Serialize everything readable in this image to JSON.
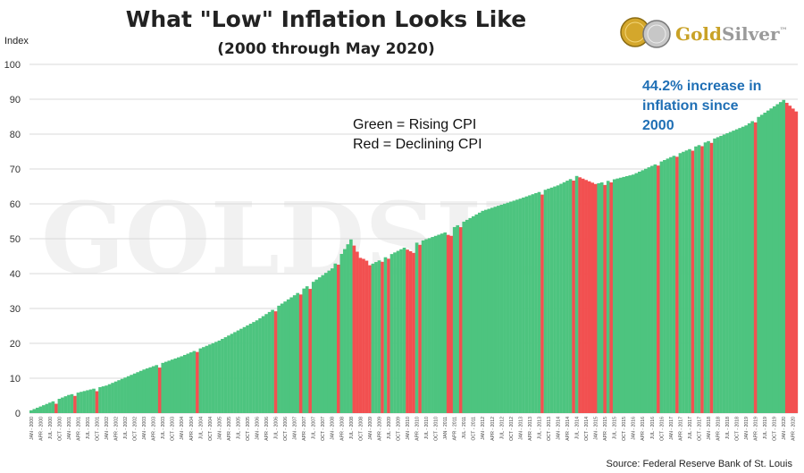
{
  "header": {
    "title": "What \"Low\" Inflation Looks Like",
    "subtitle": "(2000 through May 2020)"
  },
  "logo": {
    "name_part1": "Gold",
    "name_part2": "Silver",
    "trademark": "™",
    "colors": {
      "gold": "#c9a227",
      "silver": "#9a9a9a"
    }
  },
  "legend_note": {
    "line1": "Green = Rising CPI",
    "line2": "Red = Declining CPI"
  },
  "annotation": {
    "line1": "44.2% increase in",
    "line2": "inflation since",
    "line3": "2000"
  },
  "source": "Source: Federal Reserve Bank of St. Louis",
  "watermark": "GOLDSILVER",
  "colors": {
    "rising": "#4dc47f",
    "declining": "#f25050",
    "grid": "#d9d9d9",
    "annotation": "#1f6fb5"
  },
  "chart_data": {
    "type": "bar",
    "title": "What \"Low\" Inflation Looks Like",
    "subtitle": "(2000 through May 2020)",
    "ylabel": "Index",
    "ylim": [
      0,
      100
    ],
    "yticks": [
      0,
      10,
      20,
      30,
      40,
      50,
      60,
      70,
      80,
      90,
      100
    ],
    "grid": true,
    "start": "JAN - 2000",
    "frequency": "monthly",
    "x_tick_labels": [
      "JAN - 2000",
      "APR - 2000",
      "JUL - 2000",
      "OCT - 2000",
      "JAN - 2001",
      "APR - 2001",
      "JUL - 2001",
      "OCT - 2001",
      "JAN - 2002",
      "APR - 2002",
      "JUL - 2002",
      "OCT - 2002",
      "JAN - 2003",
      "APR - 2003",
      "JUL - 2003",
      "OCT - 2003",
      "JAN - 2004",
      "APR - 2004",
      "JUL - 2004",
      "OCT - 2004",
      "JAN - 2005",
      "APR - 2005",
      "JUL - 2005",
      "OCT - 2005",
      "JAN - 2006",
      "APR - 2006",
      "JUL - 2006",
      "OCT - 2006",
      "JAN - 2007",
      "APR - 2007",
      "JUL - 2007",
      "OCT - 2007",
      "JAN - 2008",
      "APR - 2008",
      "JUL - 2008",
      "OCT - 2008",
      "JAN - 2009",
      "APR - 2009",
      "JUL - 2009",
      "OCT - 2009",
      "JAN - 2010",
      "APR - 2010",
      "JUL - 2010",
      "OCT - 2010",
      "JAN - 2011",
      "APR - 2011",
      "JUL - 2011",
      "OCT - 2011",
      "JAN - 2012",
      "APR - 2012",
      "JUL - 2012",
      "OCT - 2012",
      "JAN - 2013",
      "APR - 2013",
      "JUL - 2013",
      "OCT - 2013",
      "JAN - 2014",
      "APR - 2014",
      "JUL - 2014",
      "OCT - 2014",
      "JAN - 2015",
      "APR - 2015",
      "JUL - 2015",
      "OCT - 2015",
      "JAN - 2016",
      "APR - 2016",
      "JUL - 2016",
      "OCT - 2016",
      "JAN - 2017",
      "APR - 2017",
      "JUL - 2017",
      "OCT - 2017",
      "JAN - 2018",
      "APR - 2018",
      "JUL - 2018",
      "OCT - 2018",
      "JAN - 2019",
      "APR - 2019",
      "JUL - 2019",
      "OCT - 2019",
      "JAN - 2020",
      "APR - 2020"
    ],
    "yearly_anchors": [
      {
        "year": 2000,
        "month": 1,
        "value": 0.8
      },
      {
        "year": 2001,
        "month": 1,
        "value": 5.2
      },
      {
        "year": 2002,
        "month": 1,
        "value": 7.9
      },
      {
        "year": 2003,
        "month": 1,
        "value": 12.5
      },
      {
        "year": 2004,
        "month": 1,
        "value": 16.3
      },
      {
        "year": 2005,
        "month": 1,
        "value": 20.8
      },
      {
        "year": 2006,
        "month": 1,
        "value": 26.6
      },
      {
        "year": 2007,
        "month": 1,
        "value": 33.8
      },
      {
        "year": 2008,
        "month": 1,
        "value": 41.5
      },
      {
        "year": 2008,
        "month": 7,
        "value": 49.8
      },
      {
        "year": 2008,
        "month": 12,
        "value": 41.0
      },
      {
        "year": 2009,
        "month": 1,
        "value": 42.4
      },
      {
        "year": 2010,
        "month": 1,
        "value": 47.9
      },
      {
        "year": 2011,
        "month": 1,
        "value": 51.8
      },
      {
        "year": 2012,
        "month": 1,
        "value": 58.0
      },
      {
        "year": 2013,
        "month": 1,
        "value": 61.5
      },
      {
        "year": 2014,
        "month": 1,
        "value": 65.3
      },
      {
        "year": 2014,
        "month": 7,
        "value": 68.0
      },
      {
        "year": 2015,
        "month": 1,
        "value": 65.7
      },
      {
        "year": 2016,
        "month": 1,
        "value": 68.4
      },
      {
        "year": 2017,
        "month": 1,
        "value": 73.4
      },
      {
        "year": 2018,
        "month": 1,
        "value": 78.0
      },
      {
        "year": 2019,
        "month": 1,
        "value": 82.5
      },
      {
        "year": 2020,
        "month": 1,
        "value": 89.8
      },
      {
        "year": 2020,
        "month": 5,
        "value": 86.5
      }
    ],
    "series": [
      {
        "name": "Green = Rising CPI",
        "color": "#4dc47f"
      },
      {
        "name": "Red = Declining CPI",
        "color": "#f25050"
      }
    ]
  }
}
